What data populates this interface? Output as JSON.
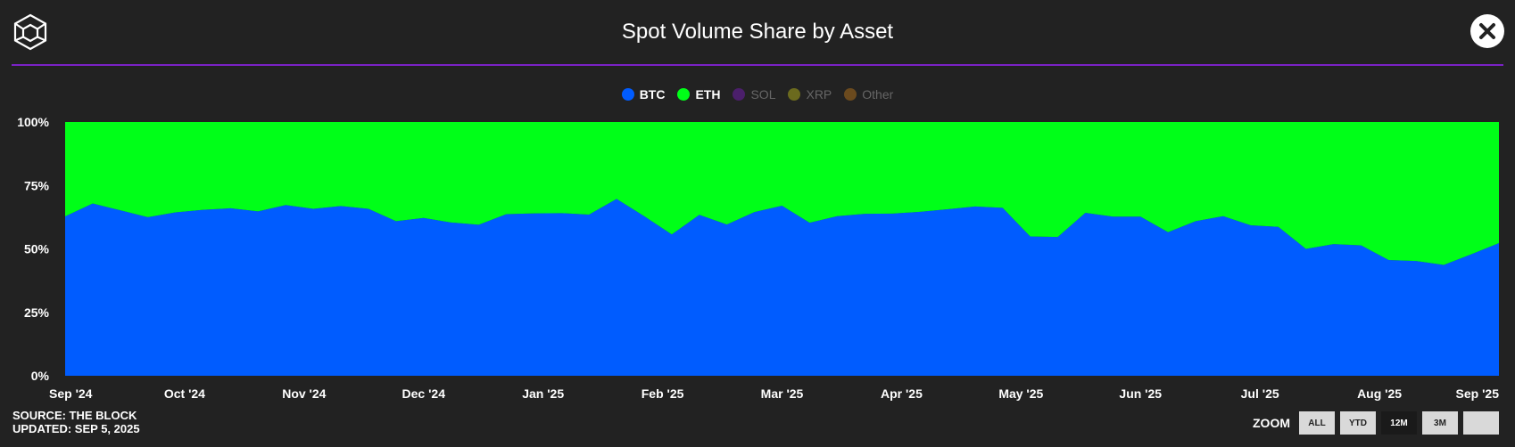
{
  "title": "Spot Volume Share by Asset",
  "close_icon": "close-icon",
  "logo_icon": "the-block-cube-logo",
  "legend": [
    {
      "name": "BTC",
      "color": "#005cff",
      "active": true
    },
    {
      "name": "ETH",
      "color": "#00ff18",
      "active": true
    },
    {
      "name": "SOL",
      "color": "#4b1f6b",
      "active": false
    },
    {
      "name": "XRP",
      "color": "#6b6a1e",
      "active": false
    },
    {
      "name": "Other",
      "color": "#6b4a1e",
      "active": false
    }
  ],
  "source": {
    "line1": "SOURCE: THE BLOCK",
    "line2": "UPDATED: SEP 5, 2025"
  },
  "zoom": {
    "label": "ZOOM",
    "buttons": [
      {
        "label": "ALL",
        "active": false
      },
      {
        "label": "YTD",
        "active": false
      },
      {
        "label": "12M",
        "active": true
      },
      {
        "label": "3M",
        "active": false
      },
      {
        "label": "",
        "active": false
      }
    ]
  },
  "chart_data": {
    "type": "area",
    "stacking": "percent",
    "grid": false,
    "legend_position": "top-center",
    "ylim": [
      0,
      100
    ],
    "yticks": [
      "0%",
      "25%",
      "50%",
      "75%",
      "100%"
    ],
    "x_tick_labels": [
      "Sep '24",
      "Oct '24",
      "Nov '24",
      "Dec '24",
      "Jan '25",
      "Feb '25",
      "Mar '25",
      "Apr '25",
      "May '25",
      "Jun '25",
      "Jul '25",
      "Aug '25",
      "Sep '25"
    ],
    "x": [
      "2024-09-01",
      "2024-09-08",
      "2024-09-15",
      "2024-09-22",
      "2024-09-29",
      "2024-10-06",
      "2024-10-13",
      "2024-10-20",
      "2024-10-27",
      "2024-11-03",
      "2024-11-10",
      "2024-11-17",
      "2024-11-24",
      "2024-12-01",
      "2024-12-08",
      "2024-12-15",
      "2024-12-22",
      "2024-12-29",
      "2025-01-05",
      "2025-01-12",
      "2025-01-19",
      "2025-01-26",
      "2025-02-02",
      "2025-02-09",
      "2025-02-16",
      "2025-02-23",
      "2025-03-02",
      "2025-03-09",
      "2025-03-16",
      "2025-03-23",
      "2025-03-30",
      "2025-04-06",
      "2025-04-13",
      "2025-04-20",
      "2025-04-27",
      "2025-05-04",
      "2025-05-11",
      "2025-05-18",
      "2025-05-25",
      "2025-06-01",
      "2025-06-08",
      "2025-06-15",
      "2025-06-22",
      "2025-06-29",
      "2025-07-06",
      "2025-07-13",
      "2025-07-20",
      "2025-07-27",
      "2025-08-03",
      "2025-08-10",
      "2025-08-17",
      "2025-08-24",
      "2025-08-31"
    ],
    "series": [
      {
        "name": "BTC",
        "color": "#005cff",
        "values": [
          62.8,
          67.9,
          65.2,
          62.5,
          64.4,
          65.4,
          66.0,
          64.8,
          67.3,
          65.8,
          66.9,
          65.8,
          60.9,
          62.2,
          60.4,
          59.5,
          63.7,
          64.0,
          64.1,
          63.5,
          69.7,
          62.9,
          55.7,
          63.4,
          59.6,
          64.5,
          67.0,
          60.3,
          62.9,
          63.8,
          63.9,
          64.6,
          65.6,
          66.7,
          66.2,
          54.9,
          54.7,
          64.2,
          62.7,
          62.7,
          56.6,
          60.9,
          62.9,
          59.3,
          58.7,
          50.0,
          51.9,
          51.4,
          45.6,
          45.2,
          43.7,
          47.9,
          52.3
        ]
      },
      {
        "name": "ETH",
        "color": "#00ff18",
        "values": [
          37.2,
          32.1,
          34.8,
          37.5,
          35.6,
          34.6,
          34.0,
          35.2,
          32.7,
          34.2,
          33.1,
          34.2,
          39.1,
          37.8,
          39.6,
          40.5,
          36.3,
          36.0,
          35.9,
          36.5,
          30.3,
          37.1,
          44.3,
          36.6,
          40.4,
          35.5,
          33.0,
          39.7,
          37.1,
          36.2,
          36.1,
          35.4,
          34.4,
          33.3,
          33.8,
          45.1,
          45.3,
          35.8,
          37.3,
          37.3,
          43.4,
          39.1,
          37.1,
          40.7,
          41.3,
          50.0,
          48.1,
          48.6,
          54.4,
          54.8,
          56.3,
          52.1,
          47.7
        ]
      }
    ]
  }
}
